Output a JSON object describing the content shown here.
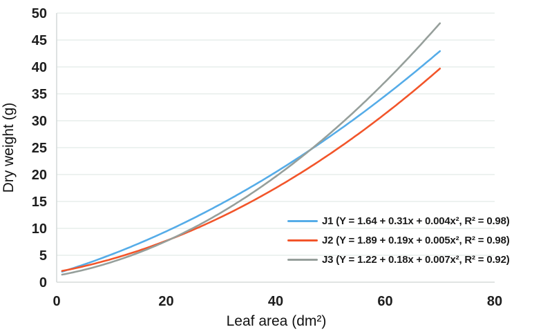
{
  "figure": {
    "background": "#ffffff"
  },
  "chart_data": {
    "type": "line",
    "title": "",
    "xlabel": "Leaf area (dm²)",
    "ylabel": "Dry weight (g)",
    "xlim": [
      0,
      80
    ],
    "ylim": [
      0,
      50
    ],
    "x_ticks": [
      0,
      20,
      40,
      60,
      80
    ],
    "y_ticks": [
      0,
      5,
      10,
      15,
      20,
      25,
      30,
      35,
      40,
      45,
      50
    ],
    "grid": "horizontal",
    "legend_position": "inside-right-bottom",
    "curve_x_range": [
      1,
      70
    ],
    "series": [
      {
        "name": "J1",
        "label": "J1 (Y = 1.64 + 0.31x + 0.004x², R² = 0.98)",
        "equation": {
          "intercept": 1.64,
          "linear": 0.31,
          "quadratic": 0.004
        },
        "r_squared": 0.98,
        "color": "#55ACE8"
      },
      {
        "name": "J2",
        "label": "J2 (Y = 1.89 + 0.19x + 0.005x², R² = 0.98)",
        "equation": {
          "intercept": 1.89,
          "linear": 0.19,
          "quadratic": 0.005
        },
        "r_squared": 0.98,
        "color": "#F2552A"
      },
      {
        "name": "J3",
        "label": "J3 (Y = 1.22 + 0.18x + 0.007x², R² = 0.92)",
        "equation": {
          "intercept": 1.22,
          "linear": 0.18,
          "quadratic": 0.007
        },
        "r_squared": 0.92,
        "color": "#969F9B"
      }
    ],
    "colors": {
      "gridline": "#E7EDEC",
      "axis_line": "#D5DBDA",
      "tick_label": "#1E1E1E",
      "axis_title": "#111111",
      "legend_text": "#1A1A1A"
    }
  }
}
